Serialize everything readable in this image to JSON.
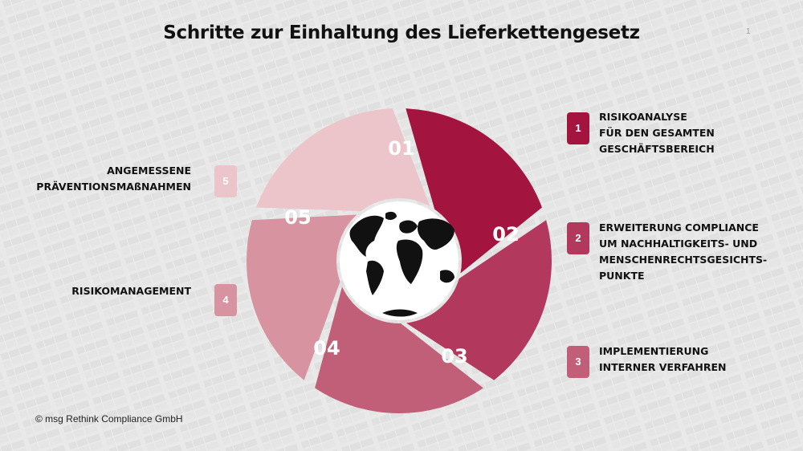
{
  "slide": {
    "title": "Schritte zur Einhaltung des Lieferkettengesetz",
    "page_number": "1",
    "copyright": "© msg Rethink Compliance GmbH"
  },
  "colors": {
    "seg1": "#a3143f",
    "seg2": "#b2385e",
    "seg3": "#c25f78",
    "seg4": "#d7939f",
    "seg5": "#ebc5c9"
  },
  "center_icon": "globe-icon",
  "wheel": {
    "segments": [
      {
        "number": "01"
      },
      {
        "number": "02"
      },
      {
        "number": "03"
      },
      {
        "number": "04"
      },
      {
        "number": "05"
      }
    ]
  },
  "steps": [
    {
      "index": "1",
      "label": "RISIKOANALYSE\nFÜR DEN GESAMTEN\nGESCHÄFTSBEREICH"
    },
    {
      "index": "2",
      "label": "ERWEITERUNG COMPLIANCE\nUM NACHHALTIGKEITS- UND\nMENSCHENRECHTSGESICHTS-\nPUNKTE"
    },
    {
      "index": "3",
      "label": "IMPLEMENTIERUNG\nINTERNER VERFAHREN"
    },
    {
      "index": "4",
      "label": "RISIKOMANAGEMENT"
    },
    {
      "index": "5",
      "label": "ANGEMESSENE\nPRÄVENTIONSMAßNAHMEN"
    }
  ]
}
